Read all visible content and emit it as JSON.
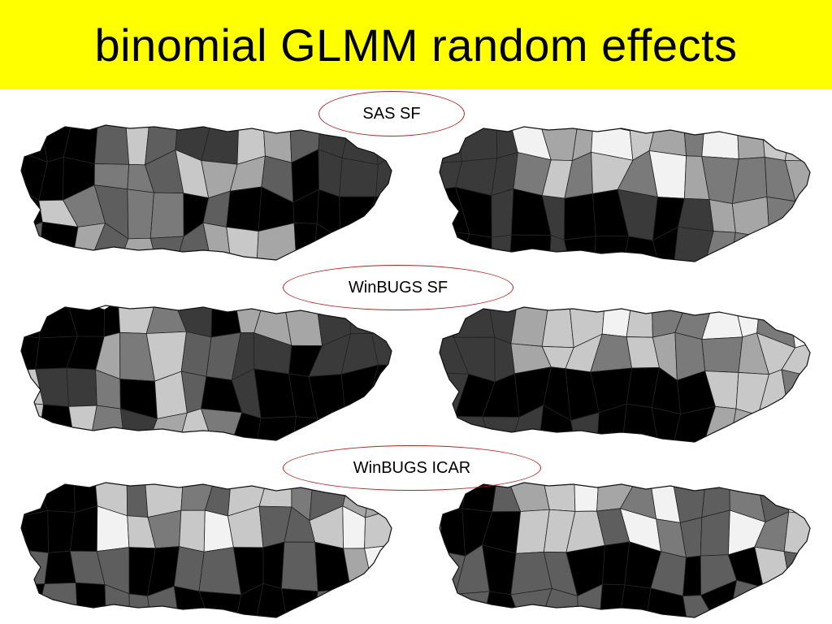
{
  "title": "binomial GLMM random effects",
  "labels": {
    "sas_sf": "SAS SF",
    "winbugs_sf": "WinBUGS SF",
    "winbugs_icar": "WinBUGS ICAR"
  },
  "colors": {
    "title_bg": "#ffff00",
    "ellipse_border": "#b22222"
  },
  "maps": [
    {
      "method": "SAS SF",
      "panel": "left"
    },
    {
      "method": "SAS SF",
      "panel": "right"
    },
    {
      "method": "WinBUGS SF",
      "panel": "left"
    },
    {
      "method": "WinBUGS SF",
      "panel": "right"
    },
    {
      "method": "WinBUGS ICAR",
      "panel": "left"
    },
    {
      "method": "WinBUGS ICAR",
      "panel": "right"
    }
  ]
}
